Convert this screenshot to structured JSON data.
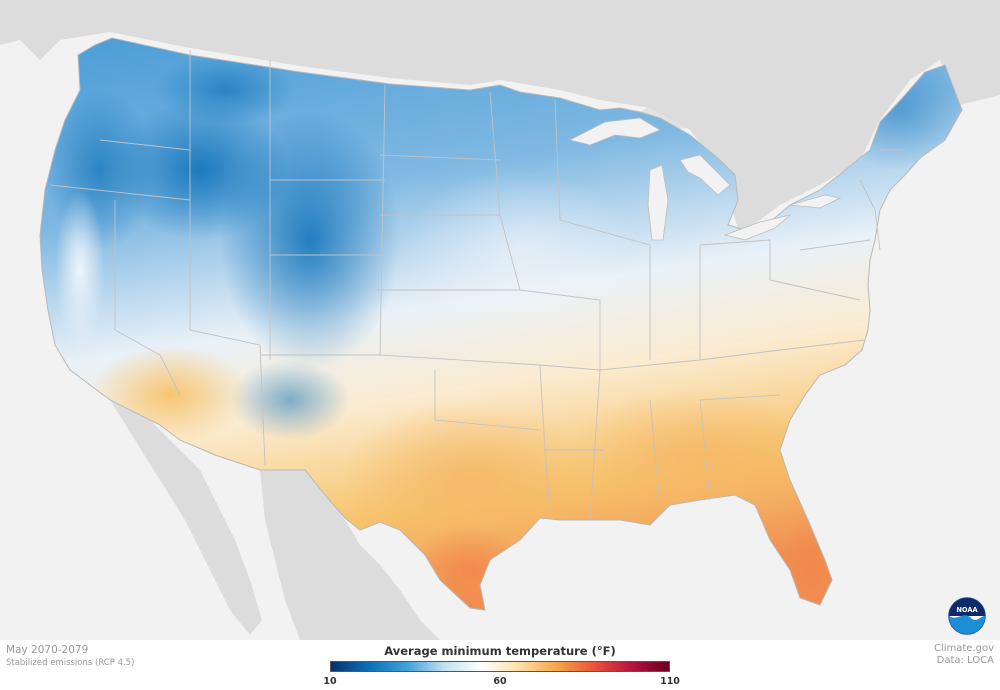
{
  "map": {
    "colors": {
      "cold": "#0a7fc7",
      "cool": "#9ccbe9",
      "neutral": "#f7f8fa",
      "warm": "#f7c46b",
      "hot": "#f28a4b",
      "non_conus_land": "#dcdcdc",
      "water": "#f2f2f2"
    }
  },
  "footer": {
    "period": "May 2070-2079",
    "scenario": "Stabilized emissions (RCP 4.5)",
    "site": "Climate.gov",
    "data_source": "Data: LOCA"
  },
  "legend": {
    "title": "Average minimum temperature  (°F)",
    "min_label": "10",
    "mid_label": "60",
    "max_label": "110",
    "min": 10,
    "mid": 60,
    "max": 110,
    "stops": [
      "#08306b",
      "#0b6fb8",
      "#3ea0da",
      "#bfe0f2",
      "#ffffff",
      "#fde0a8",
      "#f6a74a",
      "#e8553a",
      "#b8123f",
      "#67001f"
    ]
  },
  "logo": {
    "text": "NOAA",
    "icon": "noaa-logo-icon"
  }
}
